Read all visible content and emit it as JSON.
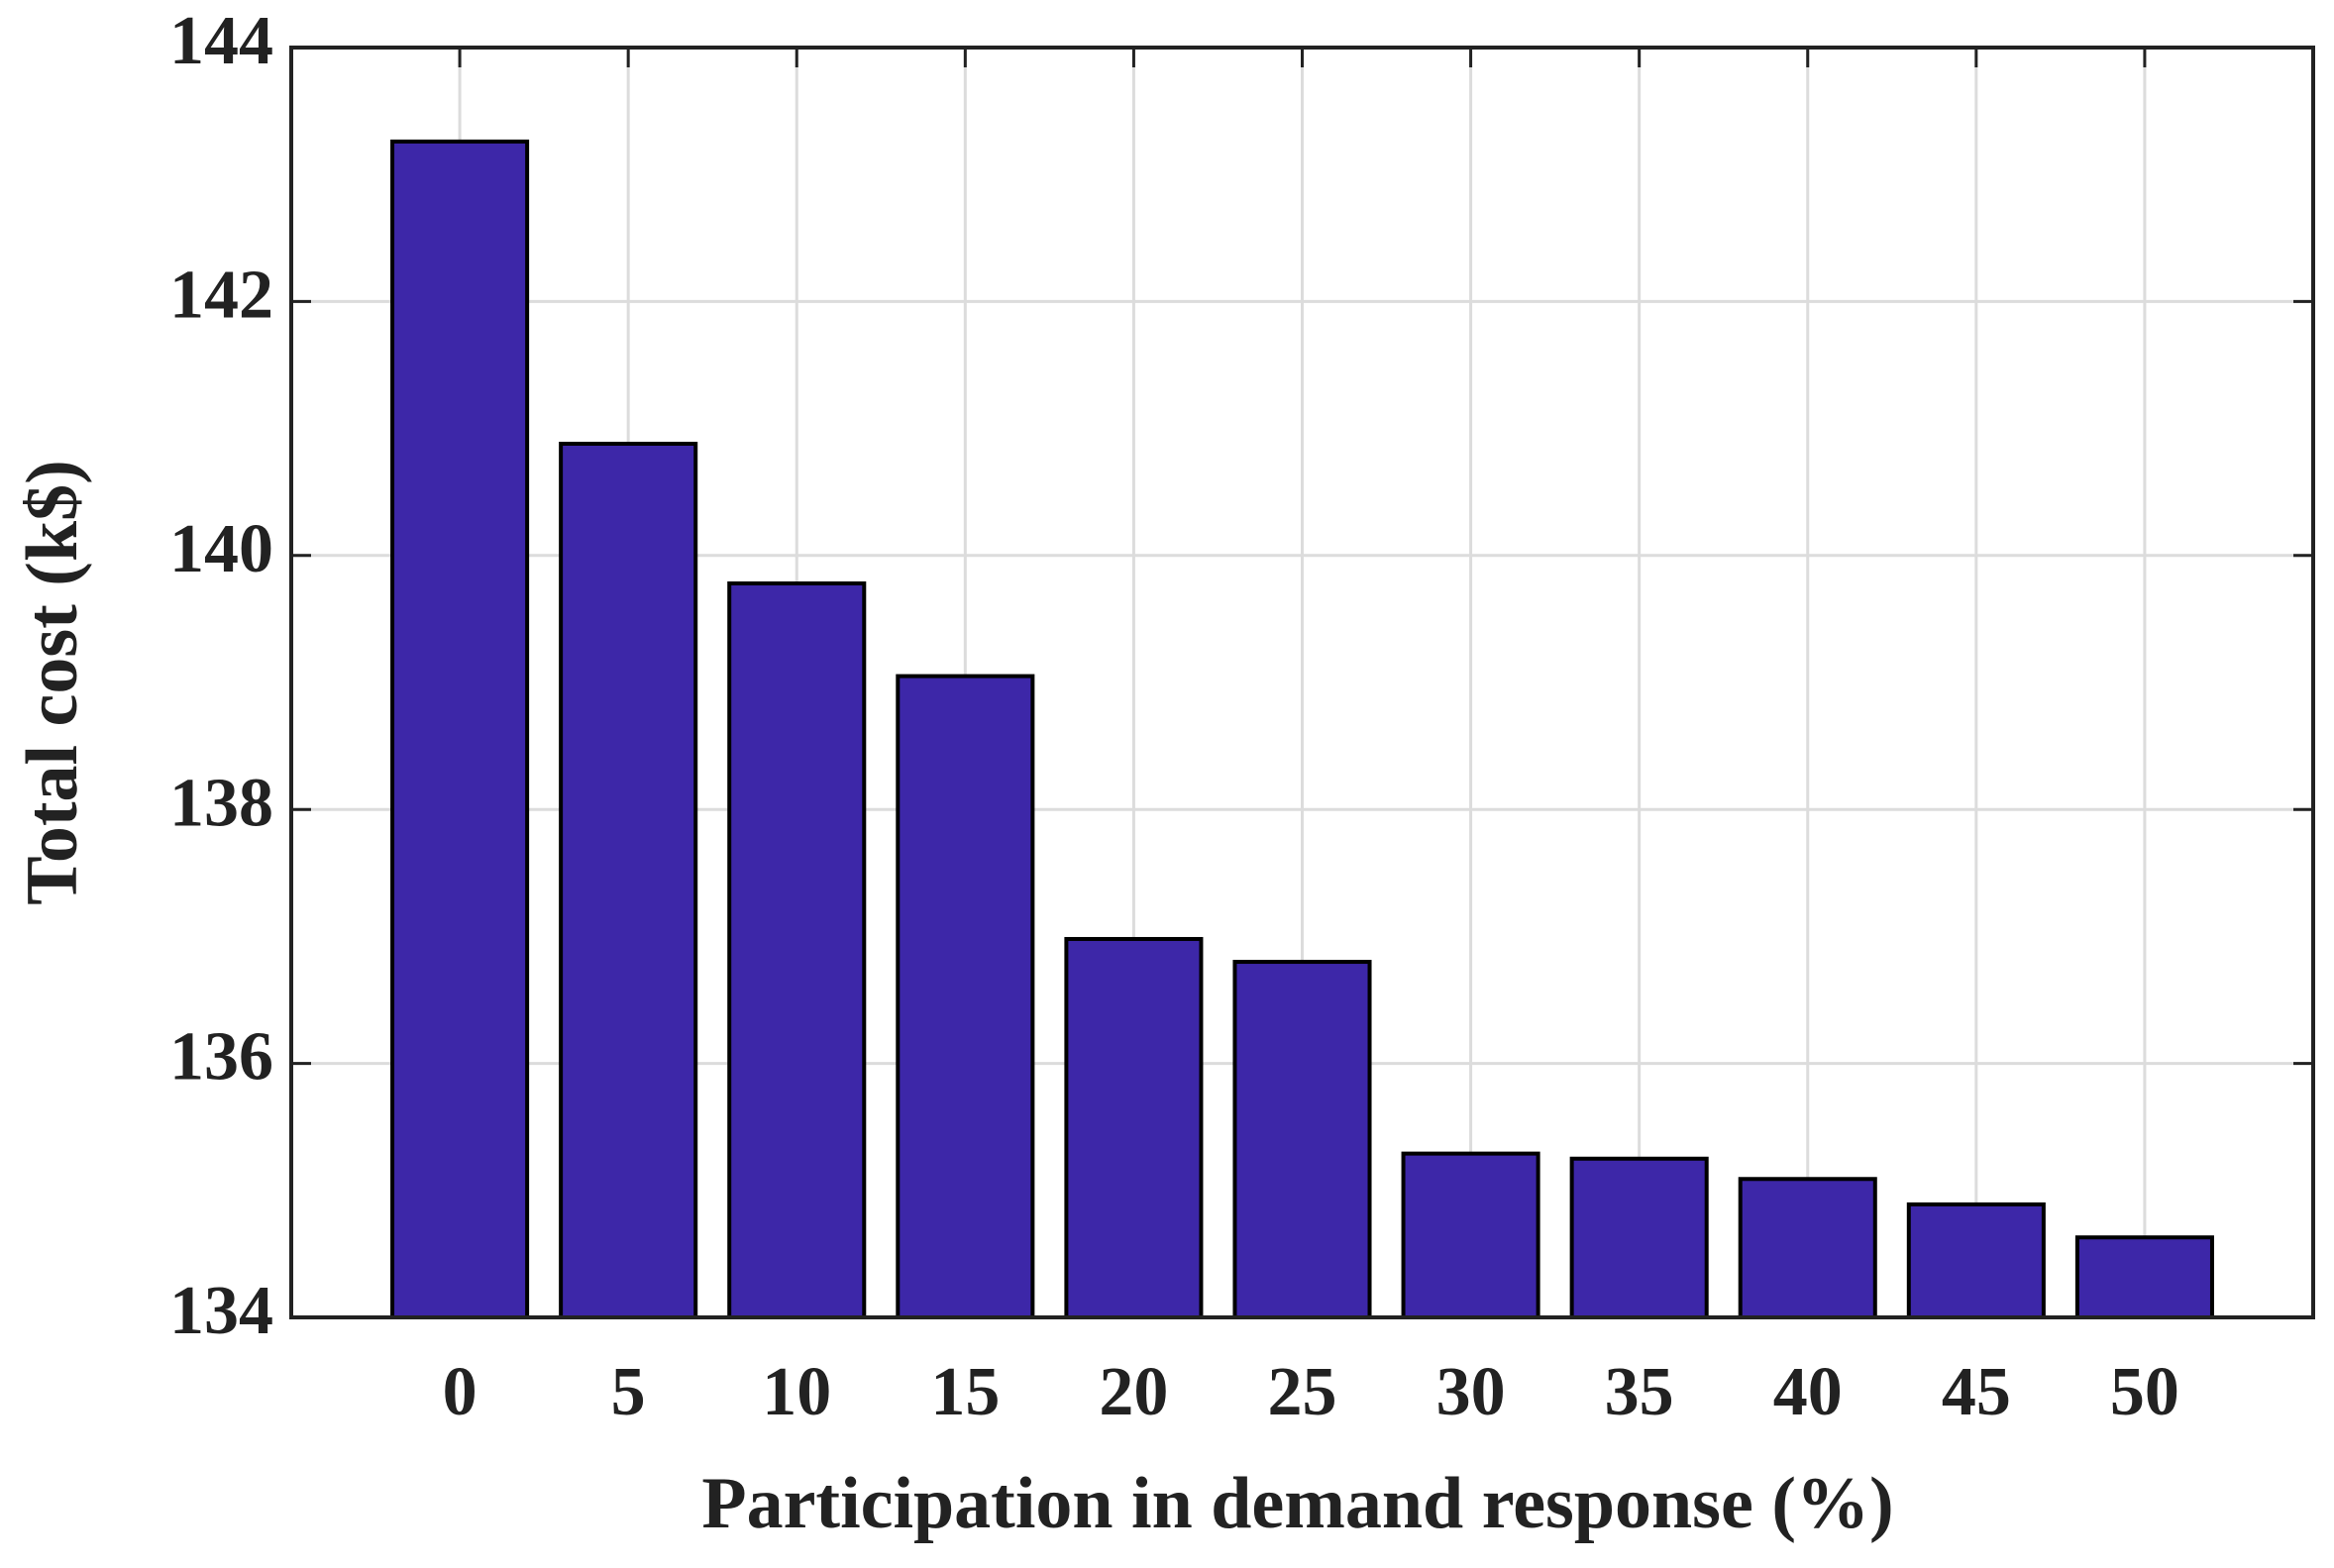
{
  "chart_data": {
    "type": "bar",
    "x_label": "Participation in demand response (%)",
    "y_label": "Total cost (k$)",
    "categories": [
      "0",
      "5",
      "10",
      "15",
      "20",
      "25",
      "30",
      "35",
      "40",
      "45",
      "50"
    ],
    "values": [
      143.26,
      140.88,
      139.78,
      139.05,
      136.98,
      136.8,
      135.29,
      135.25,
      135.09,
      134.89,
      134.63
    ],
    "color": "#3d27a8",
    "ylim": [
      134,
      144
    ],
    "yticks": [
      134,
      136,
      138,
      140,
      142,
      144
    ],
    "grid": true
  }
}
